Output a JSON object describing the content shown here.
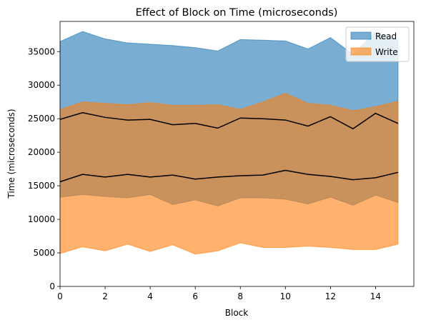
{
  "chart_data": {
    "type": "area",
    "title": "Effect of Block on Time (microseconds)",
    "xlabel": "Block",
    "ylabel": "Time (microseconds)",
    "xlim": [
      0,
      15.7
    ],
    "ylim": [
      0,
      39500
    ],
    "x_ticks": [
      "0",
      "2",
      "4",
      "6",
      "8",
      "10",
      "12",
      "14"
    ],
    "y_ticks": [
      "0",
      "5000",
      "10000",
      "15000",
      "20000",
      "25000",
      "30000",
      "35000"
    ],
    "x": [
      0,
      1,
      2,
      3,
      4,
      5,
      6,
      7,
      8,
      9,
      10,
      11,
      12,
      13,
      14,
      15
    ],
    "grid": false,
    "legend_position": "top-right",
    "series": [
      {
        "name": "Read",
        "color": "#1f77b4",
        "upper": [
          36500,
          38000,
          36900,
          36300,
          36100,
          35900,
          35600,
          35100,
          36800,
          36700,
          36600,
          35400,
          37100,
          34600,
          37900,
          36700
        ],
        "lower": [
          13300,
          13700,
          13400,
          13200,
          13700,
          12200,
          12900,
          12000,
          13200,
          13200,
          13000,
          12300,
          13300,
          12100,
          13600,
          12500
        ],
        "mean": [
          24900,
          25900,
          25200,
          24800,
          24900,
          24100,
          24300,
          23600,
          25100,
          25000,
          24800,
          23900,
          25300,
          23500,
          25800,
          24300
        ]
      },
      {
        "name": "Write",
        "color": "#ff7f0e",
        "upper": [
          26400,
          27500,
          27300,
          27100,
          27400,
          27000,
          27000,
          27100,
          26400,
          27500,
          28800,
          27300,
          27000,
          26200,
          26800,
          27600
        ],
        "lower": [
          4900,
          5900,
          5300,
          6300,
          5200,
          6200,
          4800,
          5300,
          6500,
          5800,
          5800,
          6000,
          5800,
          5500,
          5500,
          6300
        ],
        "mean": [
          15600,
          16700,
          16300,
          16700,
          16300,
          16600,
          16000,
          16300,
          16500,
          16600,
          17300,
          16700,
          16400,
          15900,
          16200,
          17000
        ]
      }
    ]
  }
}
